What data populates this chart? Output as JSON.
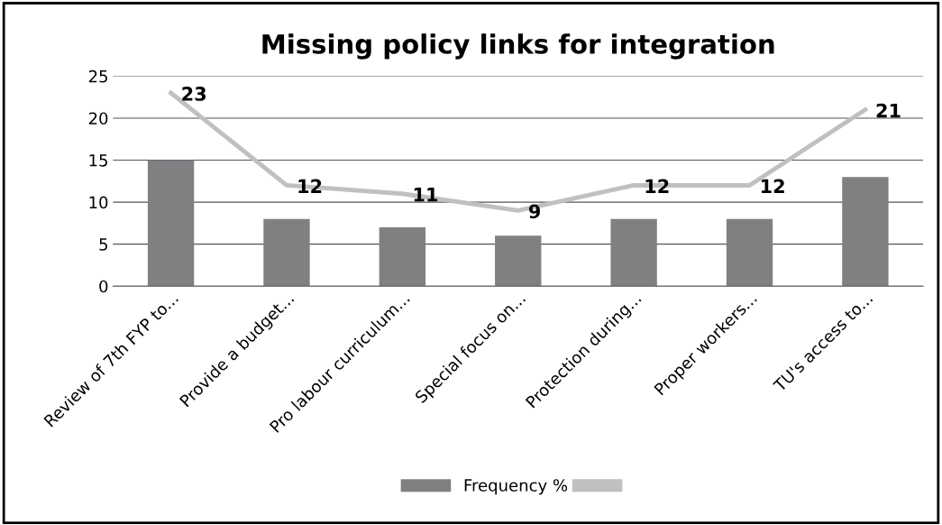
{
  "chart_data": {
    "type": "bar",
    "title": "Missing policy links for integration",
    "categories": [
      "Review of 7th FYP to...",
      "Provide a budget...",
      "Pro labour curriculum...",
      "Special focus on...",
      "Protection during...",
      "Proper workers...",
      "TU's access to..."
    ],
    "series": [
      {
        "name": "Frequency %",
        "color": "#808083",
        "values": [
          15,
          8,
          7,
          6,
          8,
          8,
          13
        ]
      },
      {
        "type": "line",
        "color": "#c0c0c2",
        "values": [
          23,
          12,
          11,
          9,
          12,
          12,
          21
        ],
        "data_labels": true
      }
    ],
    "ylim": [
      0,
      25
    ],
    "yticks": [
      0,
      5,
      10,
      15,
      20,
      25
    ],
    "grid": "y",
    "legend": "bottom",
    "marker": "none"
  }
}
